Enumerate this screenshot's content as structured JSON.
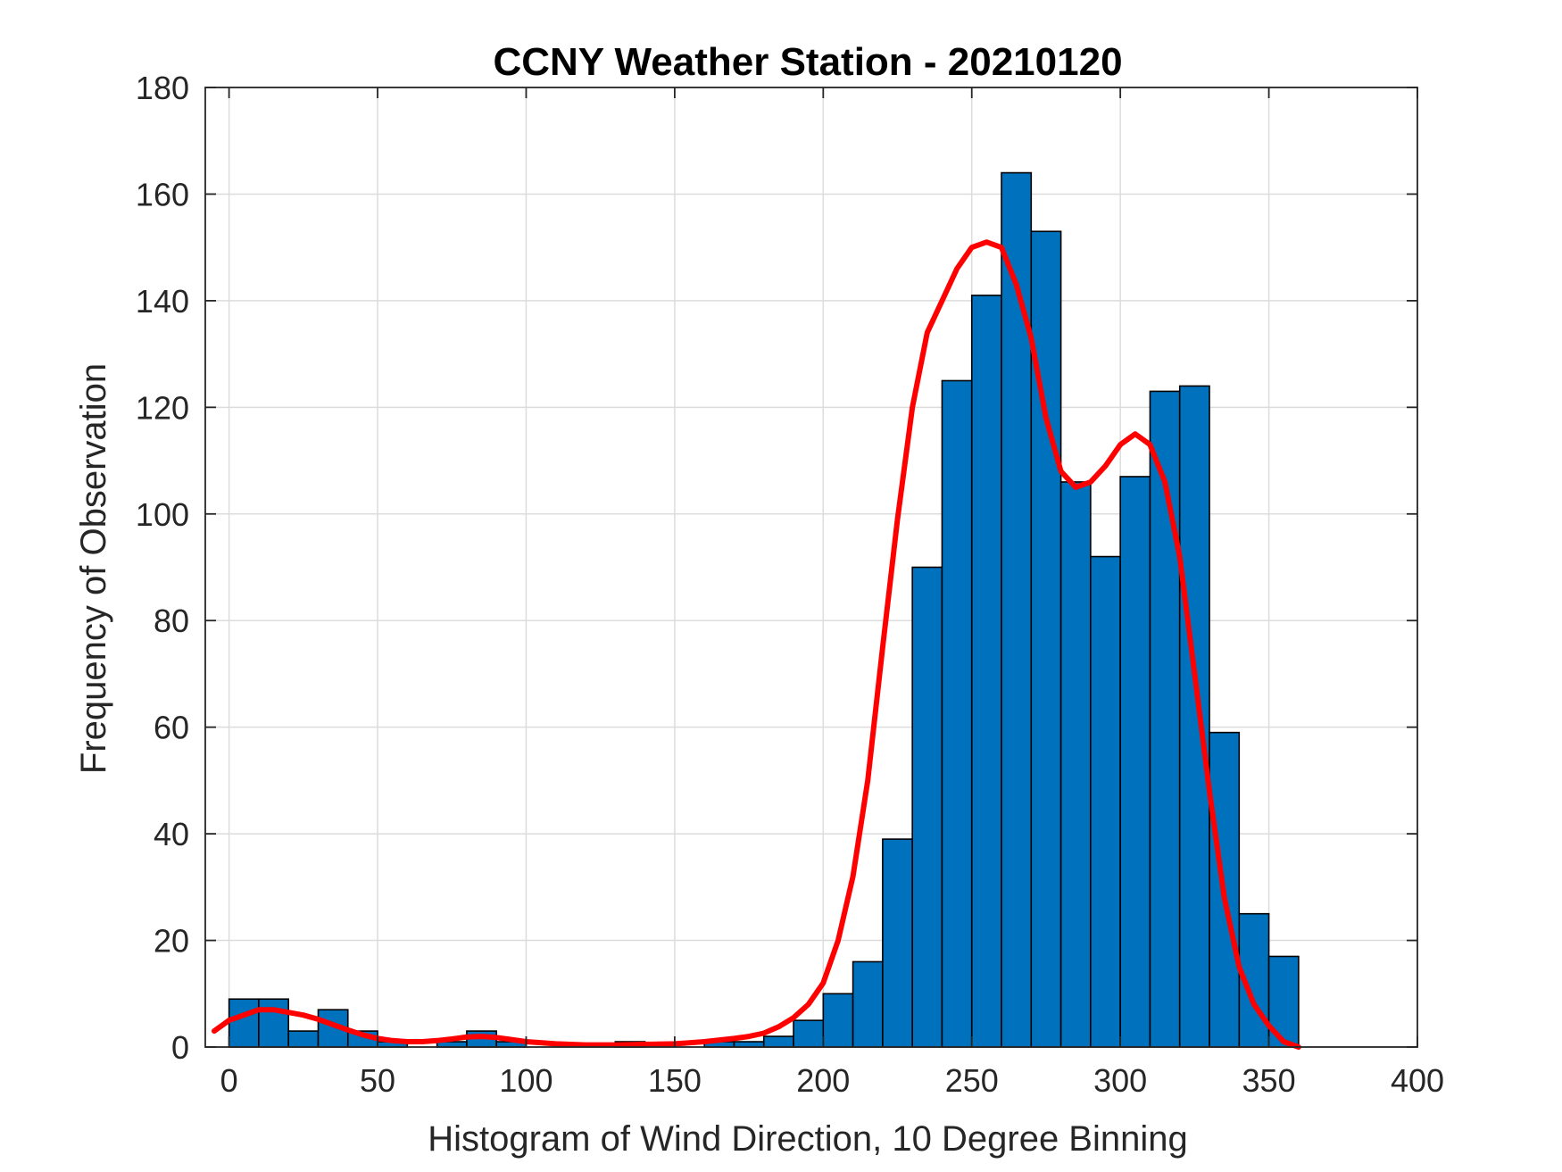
{
  "chart_data": {
    "type": "bar",
    "title": "CCNY Weather Station - 20210120",
    "xlabel": "Histogram of Wind Direction, 10 Degree Binning",
    "ylabel": "Frequency of Observation",
    "xlim": [
      -8,
      400
    ],
    "ylim": [
      0,
      180
    ],
    "xticks": [
      0,
      50,
      100,
      150,
      200,
      250,
      300,
      350,
      400
    ],
    "yticks": [
      0,
      20,
      40,
      60,
      80,
      100,
      120,
      140,
      160,
      180
    ],
    "grid": true,
    "bin_width": 10,
    "bin_edges_start": [
      0,
      10,
      20,
      30,
      40,
      50,
      60,
      70,
      80,
      90,
      100,
      110,
      120,
      130,
      140,
      150,
      160,
      170,
      180,
      190,
      200,
      210,
      220,
      230,
      240,
      250,
      260,
      270,
      280,
      290,
      300,
      310,
      320,
      330,
      340,
      350
    ],
    "counts": [
      9,
      9,
      3,
      7,
      3,
      1,
      0,
      1,
      3,
      1,
      0,
      0,
      0,
      1,
      0,
      0,
      1,
      1,
      2,
      5,
      10,
      16,
      39,
      90,
      125,
      141,
      164,
      153,
      106,
      92,
      107,
      123,
      124,
      59,
      25,
      17
    ],
    "fit_curve": {
      "x": [
        -5,
        0,
        5,
        10,
        15,
        20,
        25,
        30,
        35,
        40,
        45,
        50,
        55,
        60,
        65,
        70,
        75,
        80,
        85,
        90,
        95,
        100,
        110,
        120,
        130,
        140,
        150,
        160,
        170,
        175,
        180,
        185,
        190,
        195,
        200,
        205,
        210,
        215,
        220,
        225,
        230,
        235,
        240,
        245,
        250,
        255,
        260,
        265,
        270,
        275,
        280,
        285,
        290,
        295,
        300,
        305,
        310,
        315,
        320,
        325,
        330,
        335,
        340,
        345,
        350,
        355,
        360
      ],
      "y": [
        3,
        5,
        6,
        7,
        7,
        6.5,
        6,
        5.2,
        4.2,
        3.2,
        2.3,
        1.6,
        1.2,
        1,
        1,
        1.2,
        1.5,
        1.9,
        2,
        1.8,
        1.4,
        1,
        0.6,
        0.4,
        0.4,
        0.5,
        0.6,
        1,
        1.6,
        2,
        2.6,
        3.8,
        5.5,
        8,
        12,
        20,
        32,
        50,
        75,
        99,
        120,
        134,
        140,
        146,
        150,
        151,
        150,
        143,
        133,
        118,
        108,
        105,
        106,
        109,
        113,
        115,
        113,
        106,
        92,
        70,
        48,
        28,
        15,
        8,
        4,
        1,
        0
      ]
    },
    "colors": {
      "bar_fill": "#0072BD",
      "fit_line": "#FF0000"
    }
  }
}
